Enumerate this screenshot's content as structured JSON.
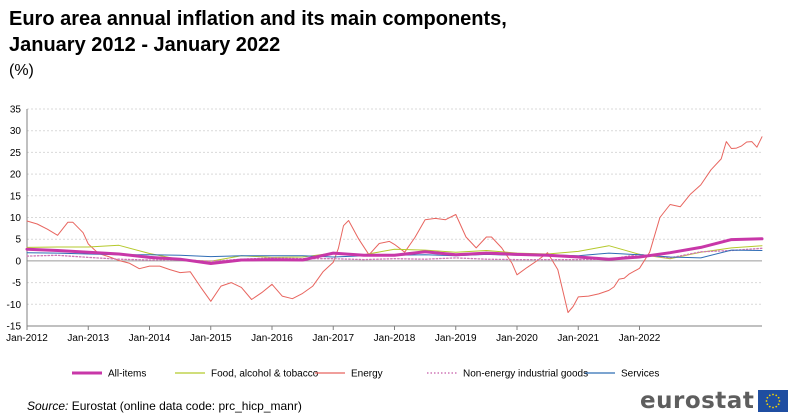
{
  "title_line1": "Euro area annual inflation and its main components,",
  "title_line2": "January 2012 - January 2022",
  "unit": "(%)",
  "source_label": "Source:",
  "source_text": "Eurostat (online data code: prc_hicp_manr)",
  "logo_text": "eurostat",
  "chart_data": {
    "type": "line",
    "title": "Euro area annual inflation and its main components, January 2012 - January 2022",
    "ylabel": "(%)",
    "xlabel": "",
    "ylim": [
      -15,
      35
    ],
    "yticks": [
      "35",
      "30",
      "25",
      "20",
      "15",
      "10",
      "5",
      "0",
      "-5",
      "-10",
      "-15"
    ],
    "xticks": [
      "Jan-2012",
      "Jan-2013",
      "Jan-2014",
      "Jan-2015",
      "Jan-2016",
      "Jan-2017",
      "Jan-2018",
      "Jan-2019",
      "Jan-2020",
      "Jan-2021",
      "Jan-2022"
    ],
    "grid": "horizontal",
    "legend_position": "bottom",
    "series": [
      {
        "name": "All-items",
        "color": "#c837a8",
        "style": "solid-thick",
        "x": [
          0,
          6,
          12,
          18,
          24,
          30,
          36,
          42,
          48,
          54,
          60,
          66,
          72,
          78,
          84,
          90,
          96,
          102,
          108,
          114,
          120,
          126,
          132,
          138,
          144
        ],
        "values": [
          2.7,
          2.4,
          2.0,
          1.6,
          0.8,
          0.4,
          -0.6,
          0.2,
          0.3,
          0.2,
          1.8,
          1.3,
          1.3,
          2.1,
          1.4,
          1.8,
          1.5,
          1.3,
          0.9,
          0.4,
          0.9,
          1.9,
          3.1,
          4.9,
          5.1
        ]
      },
      {
        "name": "Food, alcohol & tobacco",
        "color": "#b5c92c",
        "style": "solid",
        "x": [
          0,
          6,
          12,
          18,
          24,
          30,
          36,
          42,
          48,
          54,
          60,
          66,
          72,
          78,
          84,
          90,
          96,
          102,
          108,
          114,
          120,
          126,
          132,
          138,
          144
        ],
        "values": [
          3.1,
          3.2,
          3.2,
          3.6,
          1.7,
          0.3,
          -0.1,
          1.2,
          0.8,
          0.9,
          1.8,
          1.4,
          2.7,
          2.5,
          2.0,
          2.4,
          1.8,
          1.6,
          2.2,
          3.5,
          1.5,
          0.5,
          2.0,
          3.0,
          3.5
        ]
      },
      {
        "name": "Energy",
        "color": "#e8655f",
        "style": "solid",
        "x": [
          0,
          2,
          4,
          6,
          8,
          9,
          11,
          12,
          14,
          16,
          18,
          20,
          22,
          24,
          26,
          28,
          30,
          32,
          34,
          36,
          38,
          40,
          42,
          44,
          46,
          48,
          50,
          52,
          54,
          56,
          58,
          60,
          61,
          62,
          63,
          65,
          67,
          69,
          71,
          72,
          74,
          76,
          78,
          80,
          82,
          84,
          86,
          88,
          90,
          91,
          93,
          95,
          96,
          98,
          100,
          102,
          104,
          106,
          107,
          108,
          110,
          112,
          114,
          115,
          116,
          117,
          118,
          120,
          122,
          124,
          126,
          128,
          130,
          132,
          134,
          136,
          137,
          138,
          139,
          140,
          141,
          142,
          143,
          144
        ],
        "values": [
          9.2,
          8.5,
          7.3,
          5.9,
          8.9,
          8.9,
          6.5,
          3.9,
          1.7,
          1.0,
          0.1,
          -0.5,
          -1.8,
          -1.2,
          -1.2,
          -2.0,
          -2.7,
          -2.5,
          -6.0,
          -9.3,
          -5.8,
          -5.0,
          -6.1,
          -8.9,
          -7.3,
          -5.4,
          -8.1,
          -8.7,
          -7.5,
          -5.8,
          -2.5,
          -0.3,
          2.9,
          8.1,
          9.3,
          5.0,
          1.4,
          4.0,
          4.5,
          3.8,
          2.0,
          5.4,
          9.5,
          9.8,
          9.5,
          10.7,
          5.5,
          3.0,
          5.5,
          5.5,
          3.0,
          -0.5,
          -3.2,
          -1.5,
          0.1,
          1.9,
          -2.0,
          -11.9,
          -10.5,
          -8.3,
          -8.1,
          -7.6,
          -6.8,
          -6.0,
          -4.2,
          -4.0,
          -3.0,
          -1.7,
          2.0,
          10.0,
          13.0,
          12.5,
          15.4,
          17.5,
          21.0,
          23.5,
          27.5,
          25.9,
          26.0,
          26.5,
          27.4,
          27.5,
          26.2,
          28.6
        ]
      },
      {
        "name": "Non-energy industrial goods",
        "color": "#cf76b6",
        "style": "dotted",
        "x": [
          0,
          6,
          12,
          18,
          24,
          30,
          36,
          42,
          48,
          54,
          60,
          66,
          72,
          78,
          84,
          90,
          96,
          102,
          108,
          114,
          120,
          126,
          132,
          138,
          144
        ],
        "values": [
          1.1,
          1.3,
          0.8,
          0.4,
          0.2,
          0.3,
          -0.1,
          0.4,
          0.7,
          0.5,
          0.5,
          0.3,
          0.5,
          0.4,
          0.7,
          0.4,
          0.3,
          0.3,
          0.3,
          0.4,
          1.5,
          0.7,
          2.1,
          2.4,
          2.9
        ]
      },
      {
        "name": "Services",
        "color": "#2f6db5",
        "style": "solid",
        "x": [
          0,
          6,
          12,
          18,
          24,
          30,
          36,
          42,
          48,
          54,
          60,
          66,
          72,
          78,
          84,
          90,
          96,
          102,
          108,
          114,
          120,
          126,
          132,
          138,
          144
        ],
        "values": [
          1.9,
          1.8,
          1.6,
          1.4,
          1.4,
          1.3,
          1.0,
          1.2,
          1.2,
          1.2,
          0.9,
          1.2,
          1.3,
          1.4,
          1.2,
          1.5,
          1.3,
          1.4,
          1.2,
          1.8,
          1.4,
          0.9,
          0.7,
          2.5,
          2.4
        ]
      }
    ]
  }
}
